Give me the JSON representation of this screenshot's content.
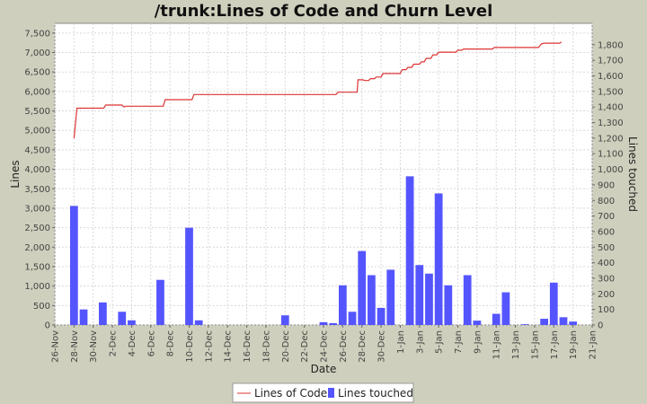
{
  "chart_data": {
    "type": "bar",
    "title": "/trunk:Lines of Code and Churn Level",
    "xlabel": "Date",
    "ylabel_left": "Lines",
    "ylabel_right": "Lines touched",
    "ylim_left": [
      0,
      7750
    ],
    "ylim_right": [
      0,
      1937.5
    ],
    "left_ticks": [
      0,
      500,
      1000,
      1500,
      2000,
      2500,
      3000,
      3500,
      4000,
      4500,
      5000,
      5500,
      6000,
      6500,
      7000,
      7500
    ],
    "left_tick_labels": [
      "0",
      "500",
      "1,000",
      "1,500",
      "2,000",
      "2,500",
      "3,000",
      "3,500",
      "4,000",
      "4,500",
      "5,000",
      "5,500",
      "6,000",
      "6,500",
      "7,000",
      "7,500"
    ],
    "right_ticks": [
      0,
      100,
      200,
      300,
      400,
      500,
      600,
      700,
      800,
      900,
      1000,
      1100,
      1200,
      1300,
      1400,
      1500,
      1600,
      1700,
      1800
    ],
    "right_tick_labels": [
      "0",
      "100",
      "200",
      "300",
      "400",
      "500",
      "600",
      "700",
      "800",
      "900",
      "1,000",
      "1,100",
      "1,200",
      "1,300",
      "1,400",
      "1,500",
      "1,600",
      "1,700",
      "1,800"
    ],
    "x_ticks": [
      "26-Nov",
      "28-Nov",
      "30-Nov",
      "2-Dec",
      "4-Dec",
      "6-Dec",
      "8-Dec",
      "10-Dec",
      "12-Dec",
      "14-Dec",
      "16-Dec",
      "18-Dec",
      "20-Dec",
      "22-Dec",
      "24-Dec",
      "26-Dec",
      "28-Dec",
      "30-Dec",
      "1-Jan",
      "3-Jan",
      "5-Jan",
      "7-Jan",
      "9-Jan",
      "11-Jan",
      "13-Jan",
      "15-Jan",
      "17-Jan",
      "19-Jan",
      "21-Jan"
    ],
    "grid": true,
    "legend_position": "bottom-center",
    "series": [
      {
        "name": "Lines of Code",
        "type": "line",
        "color": "#dd3333",
        "axis": "left",
        "points": [
          [
            28.0,
            4800
          ],
          [
            28.3,
            5570
          ],
          [
            31.1,
            5570
          ],
          [
            31.3,
            5650
          ],
          [
            33.0,
            5650
          ],
          [
            33.2,
            5600
          ],
          [
            33.4,
            5620
          ],
          [
            37.3,
            5620
          ],
          [
            37.5,
            5790
          ],
          [
            40.3,
            5790
          ],
          [
            40.5,
            5920
          ],
          [
            55.3,
            5920
          ],
          [
            55.5,
            5980
          ],
          [
            57.5,
            5980
          ],
          [
            57.6,
            6300
          ],
          [
            58.1,
            6300
          ],
          [
            58.3,
            6280
          ],
          [
            58.7,
            6280
          ],
          [
            58.9,
            6330
          ],
          [
            59.3,
            6330
          ],
          [
            59.5,
            6370
          ],
          [
            60.0,
            6370
          ],
          [
            60.2,
            6460
          ],
          [
            62.0,
            6460
          ],
          [
            62.2,
            6560
          ],
          [
            62.6,
            6560
          ],
          [
            62.8,
            6620
          ],
          [
            63.2,
            6620
          ],
          [
            63.4,
            6700
          ],
          [
            64.0,
            6700
          ],
          [
            64.2,
            6760
          ],
          [
            64.5,
            6760
          ],
          [
            64.7,
            6850
          ],
          [
            65.2,
            6850
          ],
          [
            65.4,
            6940
          ],
          [
            65.8,
            6940
          ],
          [
            66.0,
            7010
          ],
          [
            67.8,
            7010
          ],
          [
            68.0,
            7060
          ],
          [
            68.4,
            7060
          ],
          [
            68.6,
            7090
          ],
          [
            71.6,
            7090
          ],
          [
            71.8,
            7130
          ],
          [
            76.4,
            7130
          ],
          [
            76.7,
            7220
          ],
          [
            77.0,
            7240
          ],
          [
            78.6,
            7240
          ],
          [
            78.8,
            7270
          ]
        ]
      },
      {
        "name": "Lines touched",
        "type": "bar",
        "color": "#5555ff",
        "axis": "right",
        "points": [
          [
            28,
            765
          ],
          [
            29,
            100
          ],
          [
            31,
            145
          ],
          [
            33,
            85
          ],
          [
            34,
            30
          ],
          [
            37,
            290
          ],
          [
            40,
            625
          ],
          [
            41,
            30
          ],
          [
            50,
            62
          ],
          [
            54,
            18
          ],
          [
            55,
            12
          ],
          [
            56,
            255
          ],
          [
            57,
            85
          ],
          [
            58,
            475
          ],
          [
            59,
            320
          ],
          [
            60,
            110
          ],
          [
            61,
            355
          ],
          [
            63,
            955
          ],
          [
            64,
            385
          ],
          [
            65,
            330
          ],
          [
            66,
            845
          ],
          [
            67,
            255
          ],
          [
            69,
            320
          ],
          [
            70,
            28
          ],
          [
            72,
            72
          ],
          [
            73,
            210
          ],
          [
            75,
            5
          ],
          [
            77,
            40
          ],
          [
            78,
            272
          ],
          [
            79,
            50
          ],
          [
            80,
            22
          ]
        ]
      }
    ]
  }
}
